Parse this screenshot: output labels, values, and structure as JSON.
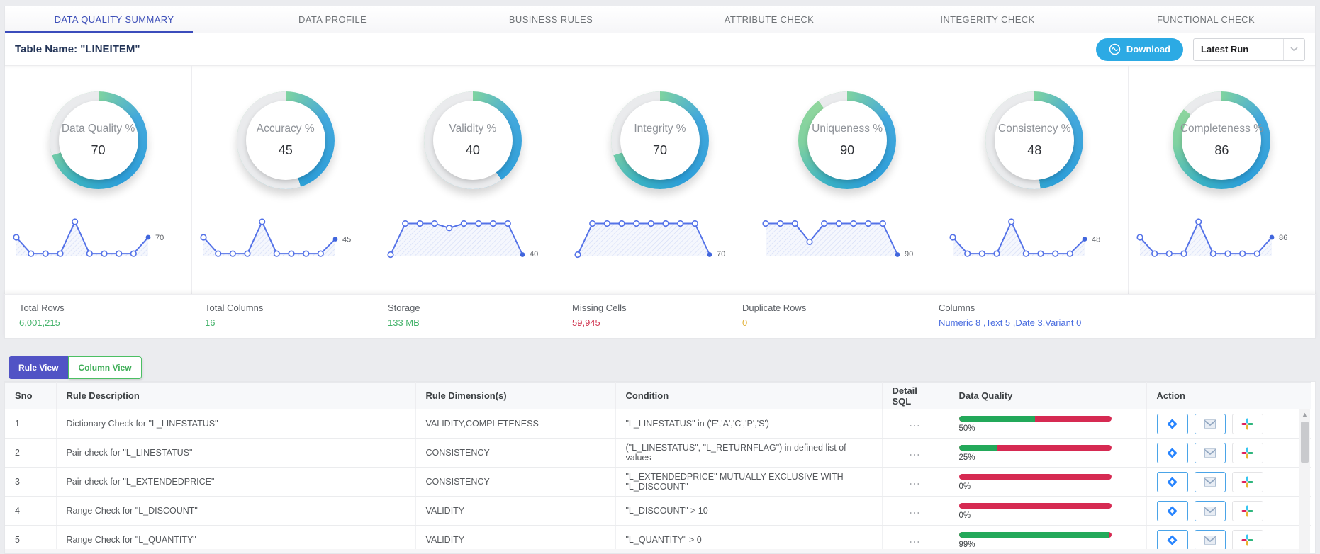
{
  "tabs": [
    "DATA QUALITY SUMMARY",
    "DATA PROFILE",
    "BUSINESS RULES",
    "ATTRIBUTE CHECK",
    "INTEGERITY CHECK",
    "FUNCTIONAL CHECK"
  ],
  "active_tab": 0,
  "header": {
    "table_name": "Table Name: \"LINEITEM\"",
    "download_label": "Download",
    "run_selector_value": "Latest Run"
  },
  "gauges": [
    {
      "label": "Data Quality %",
      "value": 70,
      "spark": [
        55,
        8,
        8,
        8,
        100,
        8,
        8,
        8,
        8,
        55
      ],
      "end_label": "70"
    },
    {
      "label": "Accuracy %",
      "value": 45,
      "spark": [
        55,
        8,
        8,
        8,
        100,
        8,
        8,
        8,
        8,
        50
      ],
      "end_label": "45"
    },
    {
      "label": "Validity %",
      "value": 40,
      "spark": [
        5,
        95,
        95,
        95,
        82,
        95,
        95,
        95,
        95,
        5
      ],
      "end_label": "40"
    },
    {
      "label": "Integrity %",
      "value": 70,
      "spark": [
        5,
        95,
        95,
        95,
        95,
        95,
        95,
        95,
        95,
        5
      ],
      "end_label": "70"
    },
    {
      "label": "Uniqueness %",
      "value": 90,
      "spark": [
        95,
        95,
        95,
        42,
        95,
        95,
        95,
        95,
        95,
        5
      ],
      "end_label": "90"
    },
    {
      "label": "Consistency %",
      "value": 48,
      "spark": [
        55,
        8,
        8,
        8,
        100,
        8,
        8,
        8,
        8,
        50
      ],
      "end_label": "48"
    },
    {
      "label": "Completeness %",
      "value": 86,
      "spark": [
        55,
        8,
        8,
        8,
        100,
        8,
        8,
        8,
        8,
        55
      ],
      "end_label": "86"
    }
  ],
  "stats": [
    {
      "label": "Total Rows",
      "value": "6,001,215",
      "color": "#45b36b"
    },
    {
      "label": "Total Columns",
      "value": "16",
      "color": "#45b36b"
    },
    {
      "label": "Storage",
      "value": "133 MB",
      "color": "#45b36b"
    },
    {
      "label": "Missing Cells",
      "value": "59,945",
      "color": "#d23b56"
    },
    {
      "label": "Duplicate Rows",
      "value": "0",
      "color": "#e2b33c"
    },
    {
      "label": "Columns",
      "value": "Numeric 8 ,Text 5 ,Date 3,Variant 0",
      "color": "#4a6de0"
    }
  ],
  "toggle": {
    "rule_label": "Rule View",
    "column_label": "Column View"
  },
  "table": {
    "headers": [
      "Sno",
      "Rule Description",
      "Rule Dimension(s)",
      "Condition",
      "Detail SQL",
      "Data Quality",
      "Action"
    ],
    "rows": [
      {
        "sno": "1",
        "description": "Dictionary Check for \"L_LINESTATUS\"",
        "dimensions": "VALIDITY,COMPLETENESS",
        "condition": "\"L_LINESTATUS\" in ('F','A','C','P','S')",
        "sql": "...",
        "quality_pct": 50,
        "quality_label": "50%"
      },
      {
        "sno": "2",
        "description": "Pair check for \"L_LINESTATUS\"",
        "dimensions": "CONSISTENCY",
        "condition": "(\"L_LINESTATUS\", \"L_RETURNFLAG\") in defined list of values",
        "sql": "...",
        "quality_pct": 25,
        "quality_label": "25%"
      },
      {
        "sno": "3",
        "description": "Pair check for \"L_EXTENDEDPRICE\"",
        "dimensions": "CONSISTENCY",
        "condition": "\"L_EXTENDEDPRICE\" MUTUALLY EXCLUSIVE WITH \"L_DISCOUNT\"",
        "sql": "...",
        "quality_pct": 0,
        "quality_label": "0%"
      },
      {
        "sno": "4",
        "description": "Range Check for \"L_DISCOUNT\"",
        "dimensions": "VALIDITY",
        "condition": "\"L_DISCOUNT\" > 10",
        "sql": "...",
        "quality_pct": 0,
        "quality_label": "0%"
      },
      {
        "sno": "5",
        "description": "Range Check for \"L_QUANTITY\"",
        "dimensions": "VALIDITY",
        "condition": "\"L_QUANTITY\" > 0",
        "sql": "...",
        "quality_pct": 99,
        "quality_label": "99%"
      }
    ]
  },
  "icons": {
    "download": "wave-circle-icon",
    "chevron": "chevron-down-icon",
    "jira": "jira-icon",
    "gmail": "gmail-icon",
    "slack": "slack-icon"
  },
  "colors": {
    "accent_blue": "#2caae4",
    "active_tab": "#3b4cbc",
    "bar_green": "#23a95a",
    "bar_red": "#d62a52",
    "spark_blue": "#5573e8"
  }
}
